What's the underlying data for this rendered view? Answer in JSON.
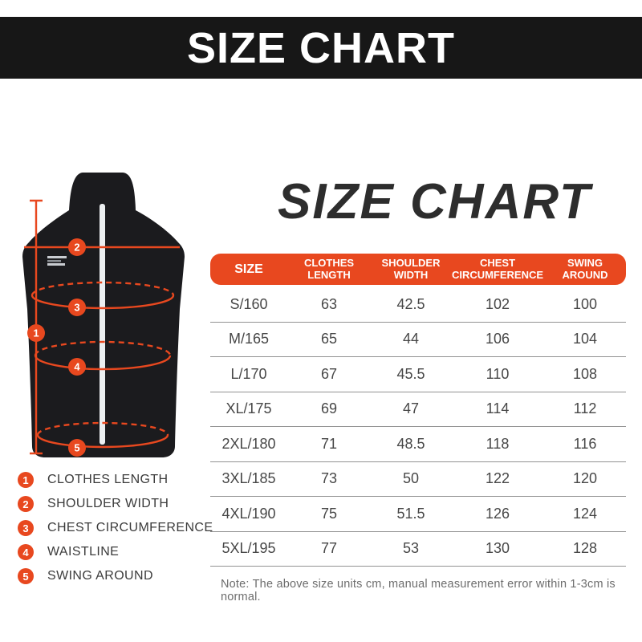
{
  "banner": {
    "title": "SIZE CHART"
  },
  "heading": {
    "title": "SIZE CHART"
  },
  "chart_data": {
    "type": "table",
    "title": "SIZE CHART",
    "columns": [
      "SIZE",
      "CLOTHES LENGTH",
      "SHOULDER WIDTH",
      "CHEST CIRCUMFERENCE",
      "SWING AROUND"
    ],
    "rows": [
      [
        "S/160",
        "63",
        "42.5",
        "102",
        "100"
      ],
      [
        "M/165",
        "65",
        "44",
        "106",
        "104"
      ],
      [
        "L/170",
        "67",
        "45.5",
        "110",
        "108"
      ],
      [
        "XL/175",
        "69",
        "47",
        "114",
        "112"
      ],
      [
        "2XL/180",
        "71",
        "48.5",
        "118",
        "116"
      ],
      [
        "3XL/185",
        "73",
        "50",
        "122",
        "120"
      ],
      [
        "4XL/190",
        "75",
        "51.5",
        "126",
        "124"
      ],
      [
        "5XL/195",
        "77",
        "53",
        "130",
        "128"
      ]
    ],
    "units": "cm"
  },
  "legend": {
    "items": [
      {
        "number": "1",
        "label": "CLOTHES LENGTH"
      },
      {
        "number": "2",
        "label": "SHOULDER WIDTH"
      },
      {
        "number": "3",
        "label": "CHEST CIRCUMFERENCE"
      },
      {
        "number": "4",
        "label": "WAISTLINE"
      },
      {
        "number": "5",
        "label": "SWING AROUND"
      }
    ]
  },
  "diagram": {
    "markers": [
      {
        "number": "1"
      },
      {
        "number": "2"
      },
      {
        "number": "3"
      },
      {
        "number": "4"
      },
      {
        "number": "5"
      }
    ]
  },
  "note": {
    "text": "Note: The above size units cm, manual measurement error within 1-3cm is normal."
  },
  "colors": {
    "accent": "#e8481f",
    "banner_bg": "#171717",
    "heading_text": "#2d2d2d",
    "table_divider": "#929292",
    "vest_fill": "#1b1b1e"
  }
}
